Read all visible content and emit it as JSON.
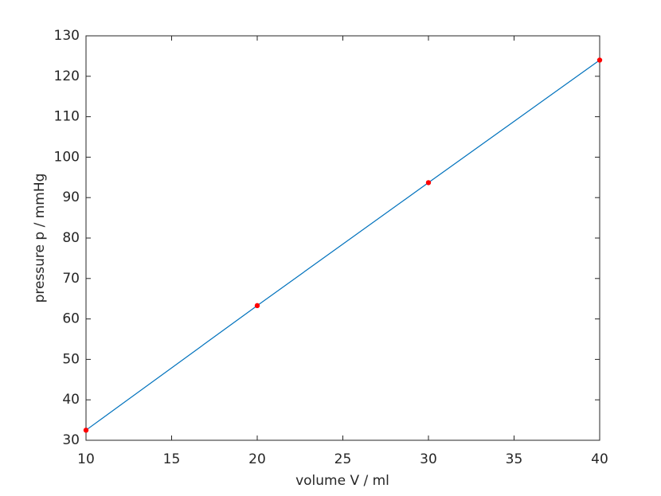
{
  "chart_data": {
    "type": "line",
    "x_label": "volume V / ml",
    "y_label": "pressure p / mmHg",
    "x": [
      10,
      20,
      30,
      40
    ],
    "series": [
      {
        "color": "#0072bd",
        "style": "line",
        "values": [
          32.5,
          63.3,
          93.7,
          124
        ]
      },
      {
        "color": "#ff0000",
        "style": "markers",
        "values": [
          32.5,
          63.3,
          93.7,
          124
        ]
      }
    ],
    "xlim": [
      10,
      40
    ],
    "xticks": [
      10,
      15,
      20,
      25,
      30,
      35,
      40
    ],
    "ylim": [
      30,
      130
    ],
    "yticks": [
      30,
      40,
      50,
      60,
      70,
      80,
      90,
      100,
      110,
      120,
      130
    ],
    "grid": false
  }
}
